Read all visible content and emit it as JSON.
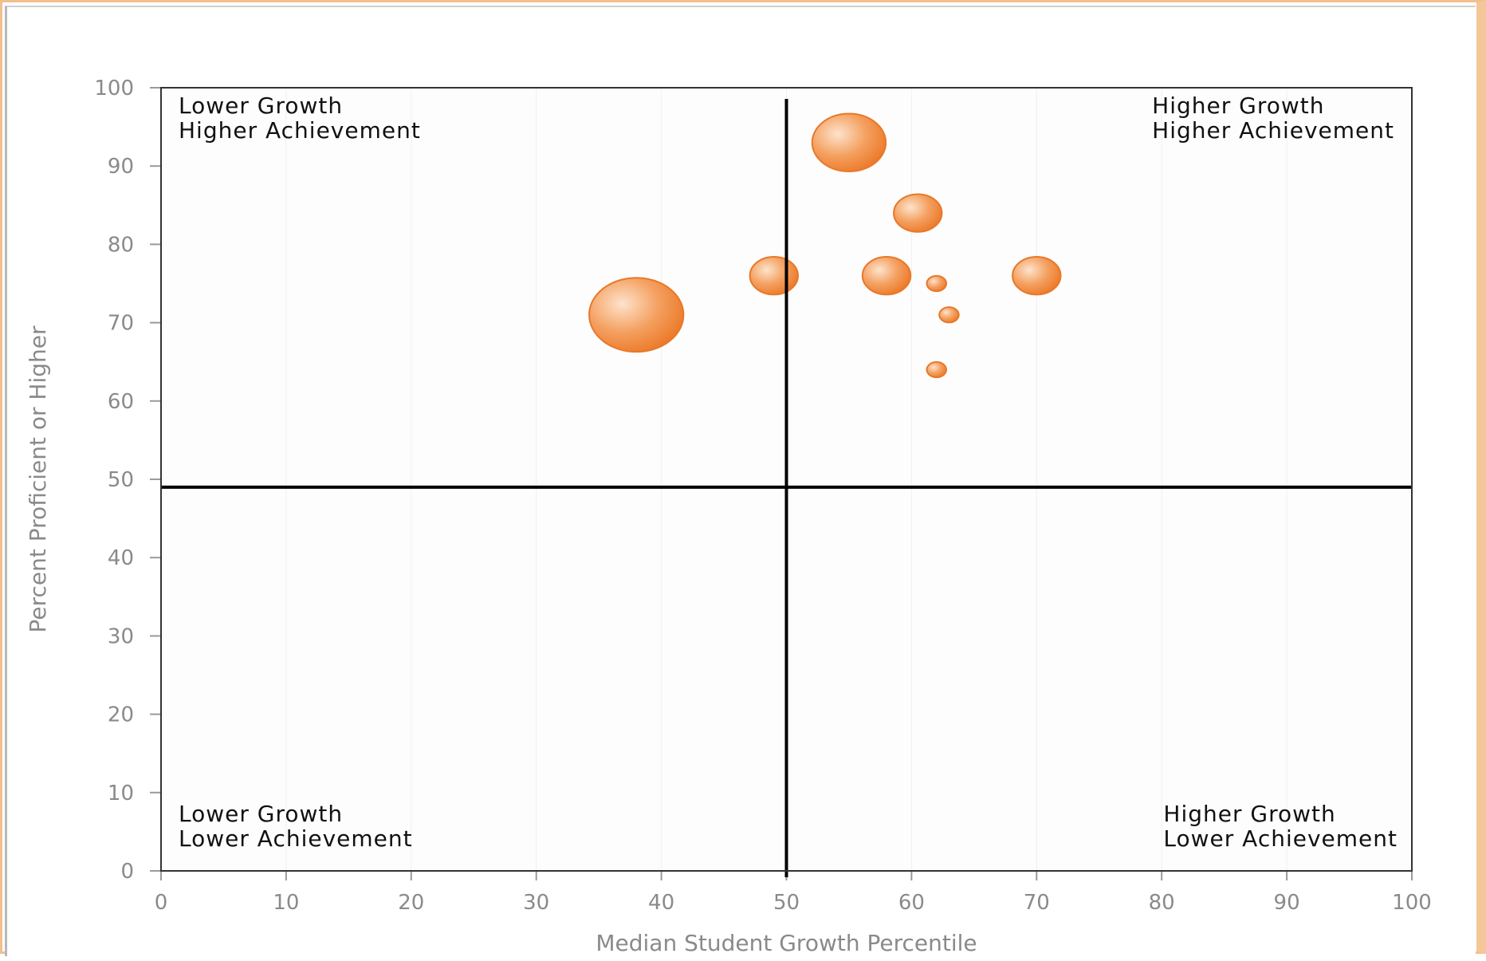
{
  "chart_data": {
    "type": "bubble",
    "title": "",
    "xlabel": "Median Student Growth Percentile",
    "ylabel": "Percent Proficient or Higher",
    "xlim": [
      0,
      100
    ],
    "ylim": [
      0,
      100
    ],
    "x_ticks": [
      0,
      10,
      20,
      30,
      40,
      50,
      60,
      70,
      80,
      90,
      100
    ],
    "y_ticks": [
      0,
      10,
      20,
      30,
      40,
      50,
      60,
      70,
      80,
      90,
      100
    ],
    "grid": true,
    "legend": "none",
    "reference_lines": {
      "x": 50,
      "y": 49
    },
    "colors": {
      "bubble_fill": "#f08a3c",
      "bubble_light": "#fbd2ad",
      "bubble_edge": "#e8782a",
      "axis": "#9a9a9a",
      "tick_text": "#8a8a8a",
      "quadrant_line": "#000000",
      "frame": "#f0c090"
    },
    "quadrants": [
      {
        "id": "top-left",
        "line1": "Lower Growth",
        "line2": "Higher Achievement"
      },
      {
        "id": "top-right",
        "line1": "Higher Growth",
        "line2": "Higher Achievement"
      },
      {
        "id": "bottom-left",
        "line1": "Lower Growth",
        "line2": "Lower Achievement"
      },
      {
        "id": "bottom-right",
        "line1": "Higher Growth",
        "line2": "Lower Achievement"
      }
    ],
    "points": [
      {
        "x": 38,
        "y": 71,
        "size": 10
      },
      {
        "x": 49,
        "y": 76,
        "size": 2.6
      },
      {
        "x": 55,
        "y": 93,
        "size": 6.1
      },
      {
        "x": 58,
        "y": 76,
        "size": 2.6
      },
      {
        "x": 60.5,
        "y": 84,
        "size": 2.6
      },
      {
        "x": 62,
        "y": 75,
        "size": 0.3
      },
      {
        "x": 63,
        "y": 71,
        "size": 0.3
      },
      {
        "x": 62,
        "y": 64,
        "size": 0.3
      },
      {
        "x": 70,
        "y": 76,
        "size": 2.6
      }
    ]
  }
}
